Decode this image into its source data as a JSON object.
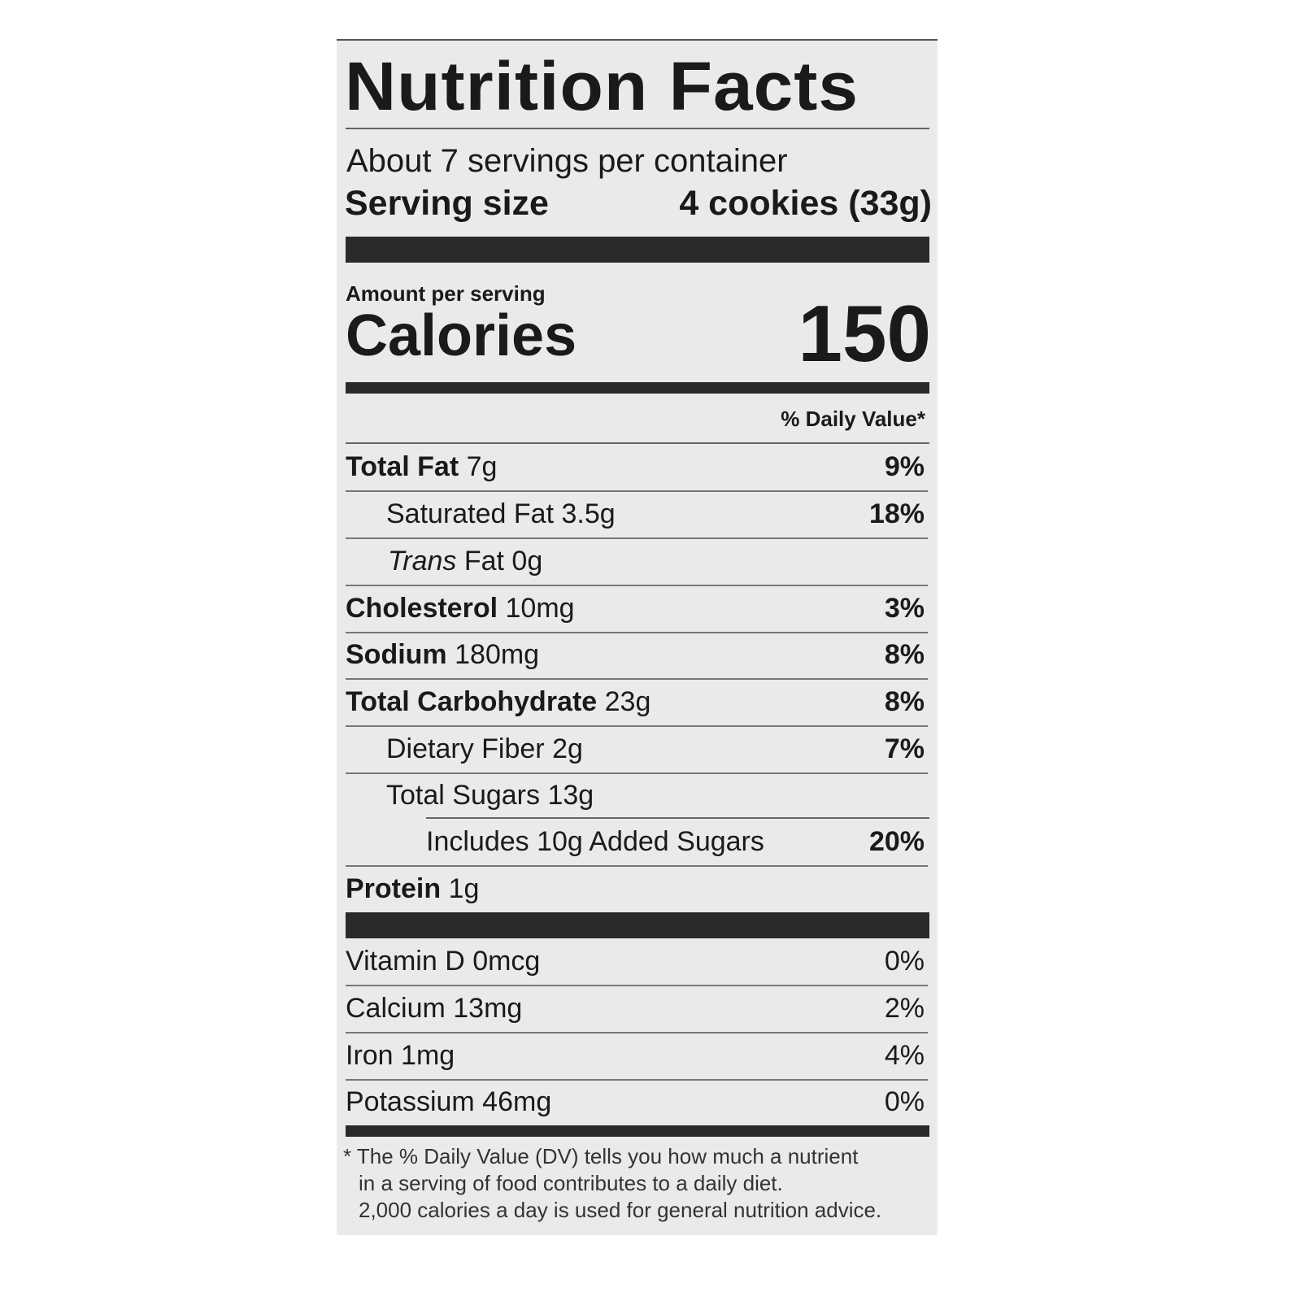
{
  "title": "Nutrition Facts",
  "servings_per_container": "About 7 servings per container",
  "serving_size_label": "Serving size",
  "serving_size_value": "4 cookies (33g)",
  "amount_per_serving": "Amount per serving",
  "calories_label": "Calories",
  "calories_value": "150",
  "daily_value_header": "% Daily Value*",
  "nutrients": [
    {
      "name": "Total Fat",
      "amount": "7g",
      "dv": "9%"
    },
    {
      "name": "Saturated Fat",
      "amount": "3.5g",
      "dv": "18%"
    },
    {
      "name": "Trans",
      "name_rest": "Fat",
      "amount": "0g",
      "dv": ""
    },
    {
      "name": "Cholesterol",
      "amount": "10mg",
      "dv": "3%"
    },
    {
      "name": "Sodium",
      "amount": "180mg",
      "dv": "8%"
    },
    {
      "name": "Total Carbohydrate",
      "amount": "23g",
      "dv": "8%"
    },
    {
      "name": "Dietary Fiber",
      "amount": "2g",
      "dv": "7%"
    },
    {
      "name": "Total Sugars",
      "amount": "13g",
      "dv": ""
    },
    {
      "name": "Includes 10g Added Sugars",
      "amount": "",
      "dv": "20%"
    },
    {
      "name": "Protein",
      "amount": "1g",
      "dv": ""
    }
  ],
  "vitamins": [
    {
      "label": "Vitamin D 0mcg",
      "dv": "0%"
    },
    {
      "label": "Calcium 13mg",
      "dv": "2%"
    },
    {
      "label": "Iron 1mg",
      "dv": "4%"
    },
    {
      "label": "Potassium 46mg",
      "dv": "0%"
    }
  ],
  "footnote": [
    "* The % Daily Value (DV) tells you how much a nutrient",
    "in a serving of food contributes to a daily diet.",
    "2,000 calories a day is used for general nutrition advice."
  ]
}
